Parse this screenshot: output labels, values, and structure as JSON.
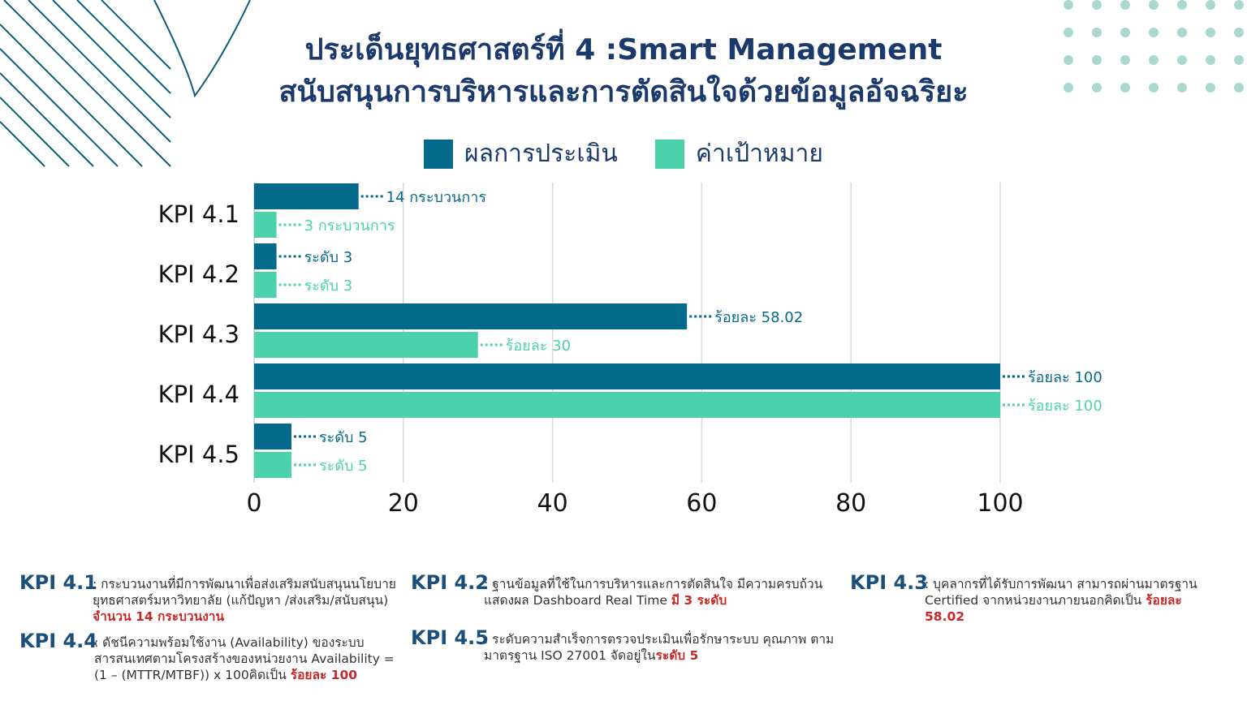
{
  "title_line1": "ประเด็นยุทธศาสตร์ที่ 4 :Smart Management",
  "title_line2": "สนับสนุนการบริหารและการตัดสินใจด้วยข้อมูลอัจฉริยะ",
  "colors": {
    "result": "#046a8c",
    "target": "#4cd1ad",
    "title": "#1b3a6b",
    "highlight": "#c62828",
    "grid": "#d9d9d9"
  },
  "chart_data": {
    "type": "bar",
    "orientation": "horizontal",
    "categories": [
      "KPI 4.1",
      "KPI 4.2",
      "KPI 4.3",
      "KPI 4.4",
      "KPI 4.5"
    ],
    "series": [
      {
        "name": "ผลการประเมิน",
        "values": [
          14,
          3,
          58.02,
          100,
          5
        ],
        "labels": [
          "14 กระบวนการ",
          "ระดับ 3",
          "ร้อยละ 58.02",
          "ร้อยละ 100",
          "ระดับ 5"
        ]
      },
      {
        "name": "ค่าเป้าหมาย",
        "values": [
          3,
          3,
          30,
          100,
          5
        ],
        "labels": [
          "3 กระบวนการ",
          "ระดับ 3",
          "ร้อยละ 30",
          "ร้อยละ 100",
          "ระดับ 5"
        ]
      }
    ],
    "xlim": [
      0,
      100
    ],
    "xticks": [
      0,
      20,
      40,
      60,
      80,
      100
    ],
    "grid": true,
    "legend_position": "top"
  },
  "notes": [
    {
      "kpi": "KPI 4.1",
      "text": ": กระบวนงานที่มีการพัฒนาเพื่อส่งเสริมสนับสนุนนโยบาย ยุทธศาสตร์มหาวิทยาลัย (แก้ปัญหา /ส่งเสริม/สนับสนุน) ",
      "highlight": "จำนวน 14 กระบวนงาน"
    },
    {
      "kpi": "KPI 4.2",
      "text": ": ฐานข้อมูลที่ใช้ในการบริหารและการตัดสินใจ มีความครบถ้วน  แสดงผล Dashboard Real Time ",
      "highlight": "มี 3 ระดับ"
    },
    {
      "kpi": "KPI 4.3",
      "text": ": บุคลากรที่ได้รับการพัฒนา สามารถผ่านมาตรฐาน Certified จากหน่วยงานภายนอกคิดเป็น ",
      "highlight": "ร้อยละ 58.02"
    },
    {
      "kpi": "KPI 4.4",
      "text": ": ดัชนีความพร้อมใช้งาน (Availability) ของระบบสารสนเทศตามโครงสร้างของหน่วยงาน Availability = (1 – (MTTR/MTBF)) x 100คิดเป็น ",
      "highlight": "ร้อยละ 100"
    },
    {
      "kpi": "KPI 4.5",
      "text": ": ระดับความสำเร็จการตรวจประเมินเพื่อรักษาระบบ คุณภาพ ตามมาตรฐาน ISO 27001 จัดอยู่ใน",
      "highlight": "ระดับ 5"
    }
  ]
}
